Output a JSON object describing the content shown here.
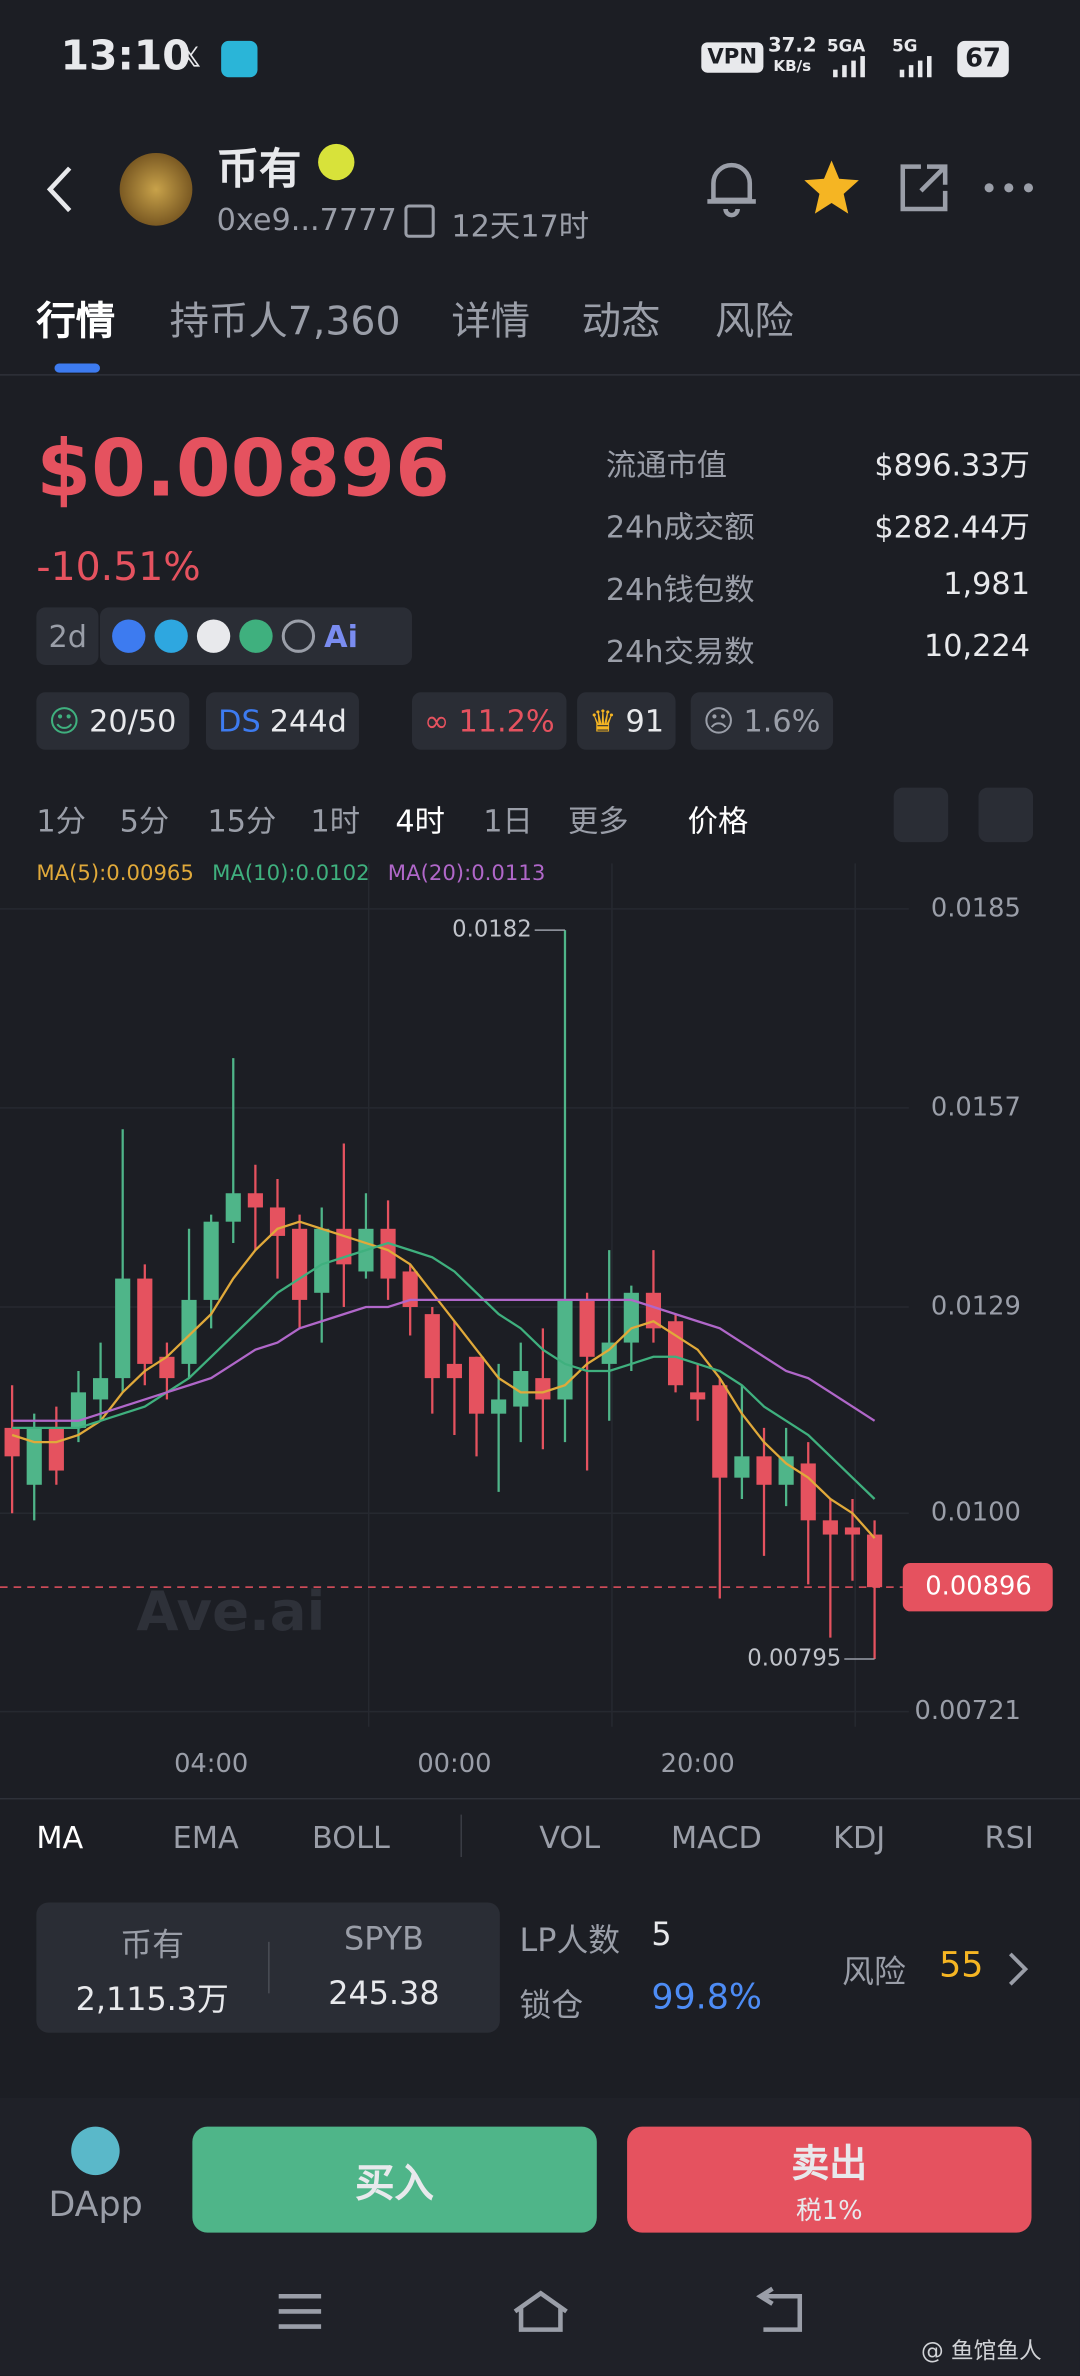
{
  "status": {
    "time": "13:10",
    "vpn": "VPN",
    "speed": "37.2",
    "speed_unit": "KB/s",
    "net1": "5GA",
    "net2": "5G",
    "battery": "67"
  },
  "header": {
    "name": "币有",
    "address": "0xe9...7777",
    "age": "12天17时"
  },
  "tabs": [
    "行情",
    "持币人7,360",
    "详情",
    "动态",
    "风险"
  ],
  "price": {
    "value": "$0.00896",
    "change": "-10.51%",
    "tag": "2d"
  },
  "stats": [
    {
      "label": "流通市值",
      "value": "$896.33万"
    },
    {
      "label": "24h成交额",
      "value": "$282.44万"
    },
    {
      "label": "24h钱包数",
      "value": "1,981"
    },
    {
      "label": "24h交易数",
      "value": "10,224"
    }
  ],
  "badges": {
    "holders": "20/50",
    "ds": "DS",
    "ds_age": "244d",
    "bundle": "11.2%",
    "rank": "91",
    "dev": "1.6%"
  },
  "intervals": [
    "1分",
    "5分",
    "15分",
    "1时",
    "4时",
    "1日",
    "更多",
    "价格"
  ],
  "chart_data": {
    "type": "candlestick",
    "watermark": "Ave.ai",
    "up_color": "#4fb589",
    "down_color": "#e5525f",
    "categories": [
      null,
      null,
      null,
      null,
      null,
      null,
      null,
      null,
      null,
      "04:00",
      null,
      null,
      null,
      null,
      null,
      null,
      null,
      null,
      null,
      null,
      "00:00",
      null,
      null,
      null,
      null,
      null,
      null,
      null,
      null,
      null,
      null,
      "20:00",
      null,
      null,
      null,
      null,
      null,
      null,
      null,
      null
    ],
    "open": [
      0.0112,
      0.0104,
      0.0112,
      0.0112,
      0.0116,
      0.0119,
      0.0133,
      0.0122,
      0.0121,
      0.013,
      0.0141,
      0.0145,
      0.0143,
      0.014,
      0.0131,
      0.014,
      0.0134,
      0.014,
      0.0134,
      0.0128,
      0.0121,
      0.0122,
      0.0114,
      0.0115,
      0.0119,
      0.0116,
      0.013,
      0.0121,
      0.0124,
      0.0131,
      0.0127,
      0.0117,
      0.0118,
      0.0105,
      0.0108,
      0.0104,
      0.0107,
      0.0099,
      0.0098,
      0.0097
    ],
    "high": [
      0.0118,
      0.0114,
      0.0115,
      0.012,
      0.0124,
      0.0154,
      0.0135,
      0.0124,
      0.014,
      0.0142,
      0.0164,
      0.0149,
      0.0147,
      0.0142,
      0.0143,
      0.0152,
      0.0145,
      0.0144,
      0.0135,
      0.0129,
      0.0127,
      0.0122,
      0.0121,
      0.0124,
      0.0126,
      0.0182,
      0.0131,
      0.0137,
      0.0132,
      0.0137,
      0.0128,
      0.0121,
      0.0119,
      0.0118,
      0.0112,
      0.0112,
      0.011,
      0.0102,
      0.0102,
      0.0099
    ],
    "low": [
      0.01,
      0.0099,
      0.0104,
      0.011,
      0.0113,
      0.0117,
      0.0118,
      0.0116,
      0.0119,
      0.0126,
      0.0138,
      0.0137,
      0.0133,
      0.0126,
      0.0124,
      0.0129,
      0.0133,
      0.013,
      0.0125,
      0.0114,
      0.0111,
      0.0108,
      0.0103,
      0.011,
      0.0109,
      0.011,
      0.0106,
      0.0113,
      0.012,
      0.0124,
      0.0117,
      0.0113,
      0.0088,
      0.0102,
      0.0094,
      0.0101,
      0.009,
      0.00825,
      0.00905,
      0.00795
    ],
    "close": [
      0.0108,
      0.0112,
      0.0106,
      0.0117,
      0.0119,
      0.0133,
      0.0121,
      0.0119,
      0.013,
      0.0141,
      0.0145,
      0.0143,
      0.0139,
      0.013,
      0.014,
      0.0135,
      0.014,
      0.0133,
      0.0129,
      0.0119,
      0.0119,
      0.0114,
      0.0116,
      0.012,
      0.0116,
      0.013,
      0.0122,
      0.0124,
      0.0131,
      0.0126,
      0.0118,
      0.0116,
      0.0105,
      0.0108,
      0.0104,
      0.0108,
      0.0099,
      0.0097,
      0.0097,
      0.00896
    ],
    "series": [
      {
        "name": "MA(5):0.00965",
        "color": "#e0a93a",
        "values": [
          0.0111,
          0.011,
          0.011,
          0.0111,
          0.0113,
          0.0117,
          0.012,
          0.0122,
          0.0125,
          0.0128,
          0.0133,
          0.0137,
          0.014,
          0.0141,
          0.014,
          0.0139,
          0.0138,
          0.0137,
          0.0135,
          0.0131,
          0.0127,
          0.0123,
          0.0119,
          0.0117,
          0.0117,
          0.0118,
          0.0121,
          0.0123,
          0.0126,
          0.0127,
          0.0125,
          0.0123,
          0.0119,
          0.0114,
          0.011,
          0.0107,
          0.0105,
          0.0102,
          0.01,
          0.00965
        ]
      },
      {
        "name": "MA(10):0.0102",
        "color": "#3fb07e",
        "values": [
          0.0112,
          0.0112,
          0.0112,
          0.0112,
          0.0113,
          0.0114,
          0.0115,
          0.0117,
          0.0119,
          0.0122,
          0.0125,
          0.0128,
          0.0131,
          0.0133,
          0.0135,
          0.0136,
          0.0137,
          0.0138,
          0.0137,
          0.0136,
          0.0134,
          0.0131,
          0.0128,
          0.0126,
          0.0123,
          0.0121,
          0.012,
          0.012,
          0.0121,
          0.0122,
          0.0122,
          0.0121,
          0.012,
          0.0118,
          0.0115,
          0.0113,
          0.0111,
          0.0108,
          0.0105,
          0.0102
        ]
      },
      {
        "name": "MA(20):0.0113",
        "color": "#b067c9",
        "values": [
          0.0113,
          0.0113,
          0.0113,
          0.0113,
          0.0114,
          0.0115,
          0.0116,
          0.0117,
          0.0118,
          0.0119,
          0.0121,
          0.0123,
          0.0124,
          0.0126,
          0.0127,
          0.0128,
          0.0129,
          0.0129,
          0.013,
          0.013,
          0.013,
          0.013,
          0.013,
          0.013,
          0.013,
          0.013,
          0.013,
          0.013,
          0.013,
          0.0129,
          0.0128,
          0.0127,
          0.0126,
          0.0124,
          0.0122,
          0.012,
          0.0119,
          0.0117,
          0.0115,
          0.0113
        ]
      }
    ],
    "annotations": {
      "max": 0.0182,
      "min": 0.00795
    },
    "current_price": 0.00896,
    "ylim": [
      0.00721,
      0.0185
    ],
    "yticks": [
      0.0185,
      0.0157,
      0.0129,
      {
        "value": 0.01,
        "label": "0.0100"
      },
      0.00721
    ],
    "grid": true
  },
  "indicators": [
    "MA",
    "EMA",
    "BOLL",
    "VOL",
    "MACD",
    "KDJ",
    "RSI"
  ],
  "pool": {
    "token1": "币有",
    "amount1": "2,115.3万",
    "token2": "SPYB",
    "amount2": "245.38",
    "lp_label": "LP人数",
    "lp": "5",
    "lock_label": "锁仓",
    "lock": "99.8%",
    "risk_label": "风险",
    "risk": "55"
  },
  "actions": {
    "dapp": "DApp",
    "buy": "买入",
    "sell": "卖出",
    "tax": "税1%"
  },
  "watermark": "@ 鱼馆鱼人"
}
